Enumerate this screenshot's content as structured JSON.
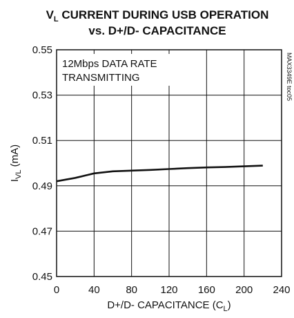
{
  "chart_data": {
    "type": "line",
    "title_line1_main": "V",
    "title_line1_sub": "L",
    "title_line1_rest": " CURRENT DURING USB OPERATION",
    "title_line2": "vs. D+/D- CAPACITANCE",
    "xlabel_main": "D+/D- CAPACITANCE (C",
    "xlabel_sub": "L",
    "xlabel_end": ")",
    "ylabel_main": "I",
    "ylabel_sub": "VL",
    "ylabel_rest": " (mA)",
    "xlim": [
      0,
      240
    ],
    "ylim": [
      0.45,
      0.55
    ],
    "xticks": [
      0,
      40,
      80,
      120,
      160,
      200,
      240
    ],
    "xtick_labels": [
      "0",
      "40",
      "80",
      "120",
      "160",
      "200",
      "240"
    ],
    "yticks": [
      0.55,
      0.53,
      0.51,
      0.49,
      0.47,
      0.45
    ],
    "ytick_labels": [
      "0.55",
      "0.53",
      "0.51",
      "0.49",
      "0.47",
      "0.45"
    ],
    "grid": true,
    "annotation_line1": "12Mbps DATA RATE",
    "annotation_line2": "TRANSMITTING",
    "figure_id": "MAX3349E toc05",
    "series": [
      {
        "x": [
          0,
          20,
          40,
          60,
          80,
          100,
          120,
          140,
          160,
          180,
          200,
          220
        ],
        "y": [
          0.492,
          0.4935,
          0.4955,
          0.4964,
          0.4967,
          0.497,
          0.4974,
          0.4978,
          0.4981,
          0.4983,
          0.4986,
          0.4989
        ]
      }
    ]
  }
}
